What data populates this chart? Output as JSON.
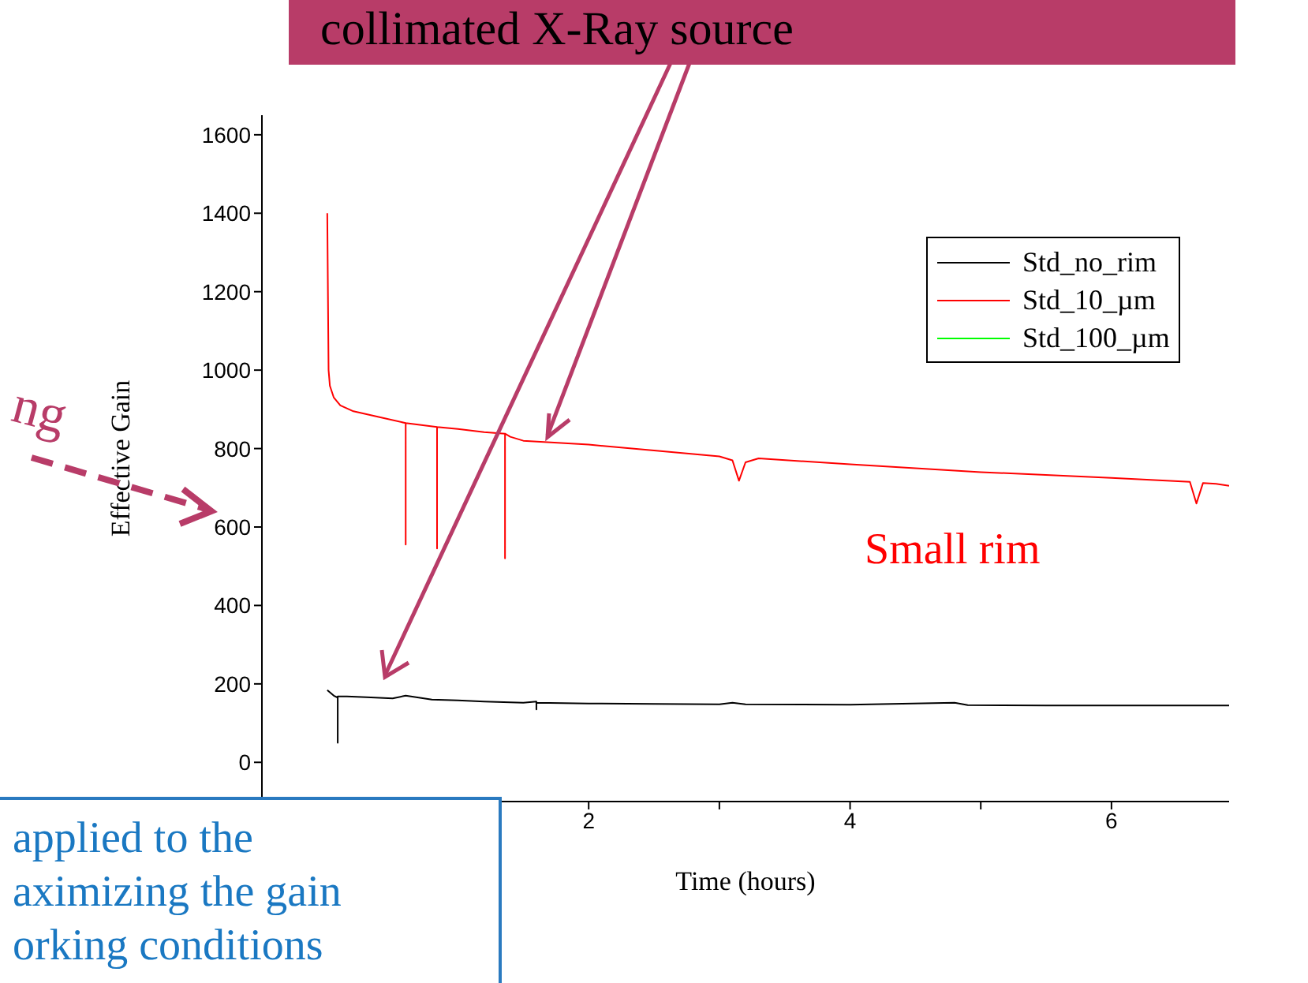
{
  "chart_data": {
    "type": "line",
    "xlabel": "Time (hours)",
    "ylabel": "Effective Gain",
    "xlim": [
      -0.5,
      6.9
    ],
    "xticks": [
      {
        "value": 1,
        "label": null
      },
      2,
      {
        "value": 3,
        "label": null
      },
      4,
      {
        "value": 5,
        "label": null
      },
      6
    ],
    "ylim": [
      -100,
      1650
    ],
    "yticks": [
      0,
      200,
      400,
      600,
      800,
      1000,
      1200,
      1400,
      1600
    ],
    "legend": "top right",
    "grid": false,
    "marker": "none",
    "line_style": "solid",
    "series": [
      {
        "name": "Std_no_rim",
        "color": "#000000",
        "x": [
          0,
          0.05,
          0.08,
          0.08,
          0.08,
          0.15,
          0.3,
          0.5,
          0.6,
          0.8,
          1.0,
          1.2,
          1.5,
          1.6,
          1.6,
          1.6,
          2.0,
          2.5,
          3.0,
          3.1,
          3.2,
          4.0,
          4.8,
          4.9,
          5.5,
          6.0,
          6.9
        ],
        "values": [
          184,
          170,
          165,
          50,
          168,
          168,
          166,
          163,
          170,
          160,
          158,
          155,
          152,
          155,
          135,
          152,
          150,
          149,
          148,
          152,
          148,
          147,
          152,
          146,
          145,
          145,
          145
        ]
      },
      {
        "name": "Std_10_µm",
        "color": "#ff0000",
        "x": [
          0,
          0.01,
          0.02,
          0.05,
          0.1,
          0.2,
          0.4,
          0.6,
          0.6,
          0.6,
          0.84,
          0.84,
          0.84,
          1.0,
          1.2,
          1.36,
          1.36,
          1.36,
          1.4,
          1.5,
          2.0,
          2.5,
          3.0,
          3.1,
          3.15,
          3.2,
          3.3,
          4.0,
          5.0,
          6.0,
          6.6,
          6.65,
          6.7,
          6.8,
          6.9
        ],
        "values": [
          1400,
          1000,
          960,
          930,
          910,
          895,
          880,
          865,
          555,
          865,
          855,
          545,
          855,
          850,
          842,
          838,
          520,
          838,
          830,
          820,
          810,
          795,
          780,
          770,
          718,
          765,
          775,
          760,
          740,
          725,
          715,
          660,
          712,
          710,
          705
        ]
      },
      {
        "name": "Std_100_µm",
        "color": "#00ff00"
      }
    ],
    "annotations": [
      "collimated X-Ray source",
      "Small rim",
      "applied to the\naximizing the gain\norking conditions",
      "ng"
    ]
  }
}
